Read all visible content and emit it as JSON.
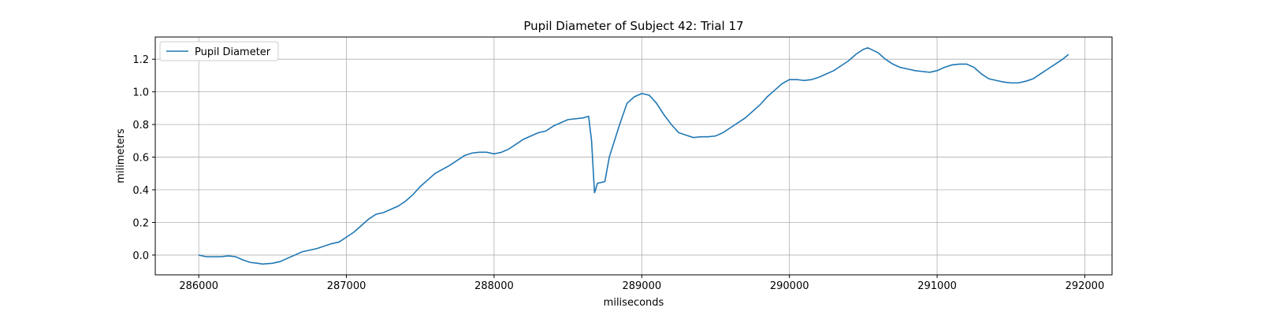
{
  "chart_data": {
    "type": "line",
    "title": "Pupil Diameter of Subject 42: Trial 17",
    "x_label": "miliseconds",
    "y_label": "milimeters",
    "x": [
      286000,
      286050,
      286100,
      286150,
      286200,
      286250,
      286300,
      286350,
      286400,
      286430,
      286500,
      286550,
      286600,
      286650,
      286700,
      286800,
      286900,
      286950,
      287000,
      287050,
      287100,
      287150,
      287200,
      287250,
      287300,
      287350,
      287400,
      287450,
      287500,
      287550,
      287600,
      287700,
      287750,
      287800,
      287850,
      287900,
      287950,
      288000,
      288050,
      288100,
      288150,
      288200,
      288250,
      288300,
      288350,
      288400,
      288450,
      288500,
      288600,
      288640,
      288660,
      288680,
      288700,
      288750,
      288780,
      288850,
      288900,
      288950,
      289000,
      289050,
      289100,
      289150,
      289200,
      289250,
      289300,
      289350,
      289400,
      289450,
      289500,
      289550,
      289600,
      289700,
      289800,
      289850,
      289900,
      289950,
      290000,
      290050,
      290100,
      290150,
      290200,
      290250,
      290300,
      290350,
      290400,
      290450,
      290500,
      290530,
      290600,
      290650,
      290700,
      290750,
      290800,
      290850,
      290900,
      290950,
      291000,
      291050,
      291100,
      291150,
      291200,
      291250,
      291300,
      291350,
      291400,
      291450,
      291500,
      291550,
      291600,
      291650,
      291700,
      291750,
      291800,
      291850,
      291890
    ],
    "series": [
      {
        "name": "Pupil Diameter",
        "color": "#1f77b4",
        "values": [
          0.0,
          -0.01,
          -0.01,
          -0.01,
          -0.005,
          -0.01,
          -0.03,
          -0.045,
          -0.05,
          -0.055,
          -0.05,
          -0.04,
          -0.02,
          0.0,
          0.02,
          0.04,
          0.07,
          0.08,
          0.11,
          0.14,
          0.18,
          0.22,
          0.25,
          0.26,
          0.28,
          0.3,
          0.33,
          0.37,
          0.42,
          0.46,
          0.5,
          0.55,
          0.58,
          0.61,
          0.625,
          0.63,
          0.63,
          0.62,
          0.63,
          0.65,
          0.68,
          0.71,
          0.73,
          0.75,
          0.76,
          0.79,
          0.81,
          0.83,
          0.84,
          0.85,
          0.7,
          0.38,
          0.44,
          0.45,
          0.6,
          0.8,
          0.93,
          0.97,
          0.99,
          0.98,
          0.93,
          0.86,
          0.8,
          0.75,
          0.735,
          0.72,
          0.725,
          0.725,
          0.73,
          0.75,
          0.78,
          0.84,
          0.92,
          0.97,
          1.01,
          1.05,
          1.075,
          1.075,
          1.07,
          1.075,
          1.09,
          1.11,
          1.13,
          1.16,
          1.19,
          1.23,
          1.26,
          1.27,
          1.24,
          1.2,
          1.17,
          1.15,
          1.14,
          1.13,
          1.125,
          1.12,
          1.13,
          1.15,
          1.165,
          1.17,
          1.17,
          1.15,
          1.11,
          1.08,
          1.07,
          1.06,
          1.055,
          1.055,
          1.065,
          1.08,
          1.11,
          1.14,
          1.17,
          1.2,
          1.23
        ]
      }
    ],
    "xlim": [
      285705.5,
      292184.5
    ],
    "xticks": [
      286000,
      287000,
      288000,
      289000,
      290000,
      291000,
      292000
    ],
    "ylim": [
      -0.121,
      1.336
    ],
    "yticks": [
      {
        "value": 0,
        "label": "0.0"
      },
      {
        "value": 0.2,
        "label": "0.2"
      },
      {
        "value": 0.4,
        "label": "0.4"
      },
      {
        "value": 0.6,
        "label": "0.6"
      },
      {
        "value": 0.8,
        "label": "0.8"
      },
      {
        "value": 1,
        "label": "1.0"
      },
      {
        "value": 1.2,
        "label": "1.2"
      }
    ],
    "grid": true,
    "legend": "upper left"
  }
}
